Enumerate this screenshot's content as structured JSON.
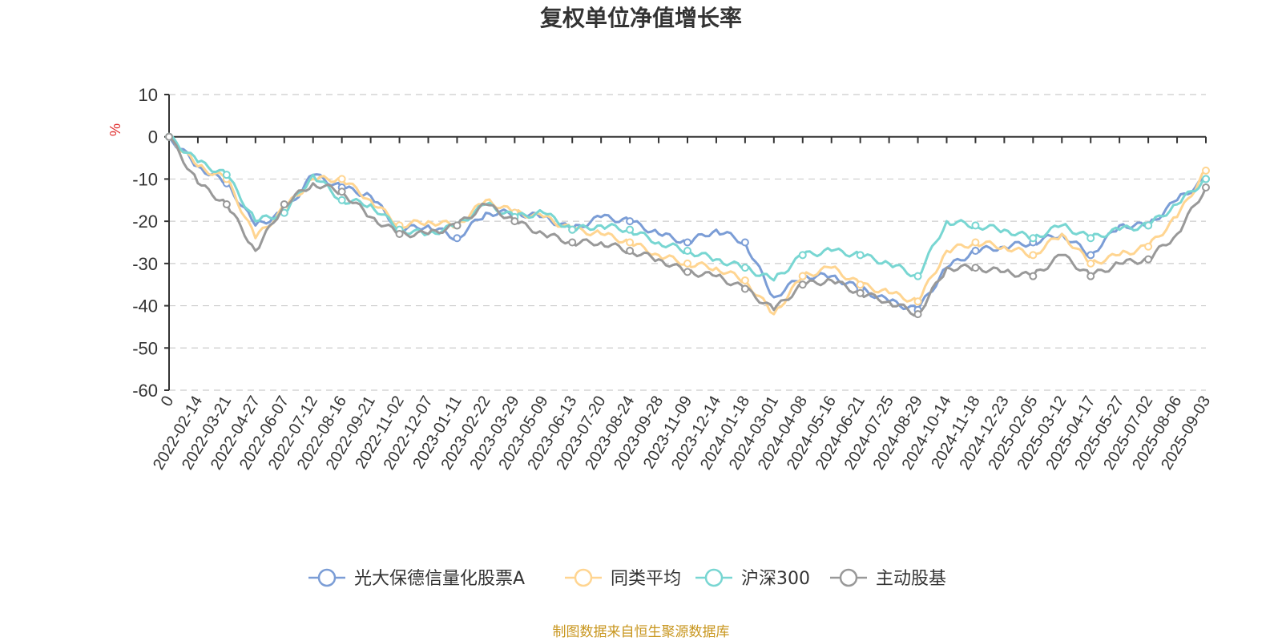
{
  "chart_data": {
    "type": "line",
    "title": "复权单位净值增长率",
    "ylabel": "%",
    "ylim": [
      -60,
      10
    ],
    "yticks": [
      10,
      0,
      -10,
      -20,
      -30,
      -40,
      -50,
      -60
    ],
    "categories": [
      "0",
      "2022-02-14",
      "2022-03-21",
      "2022-04-27",
      "2022-06-07",
      "2022-07-12",
      "2022-08-16",
      "2022-09-21",
      "2022-11-02",
      "2022-12-07",
      "2023-01-11",
      "2023-02-22",
      "2023-03-29",
      "2023-05-09",
      "2023-06-13",
      "2023-07-20",
      "2023-08-24",
      "2023-09-28",
      "2023-11-09",
      "2023-12-14",
      "2024-01-18",
      "2024-03-01",
      "2024-04-08",
      "2024-05-16",
      "2024-06-21",
      "2024-07-25",
      "2024-08-29",
      "2024-10-14",
      "2024-11-18",
      "2024-12-23",
      "2025-02-05",
      "2025-03-12",
      "2025-04-17",
      "2025-05-27",
      "2025-07-02",
      "2025-08-06",
      "2025-09-03"
    ],
    "grid": true,
    "legend_position": "bottom",
    "series": [
      {
        "name": "光大保德信量化股票A",
        "color": "#7b9dd6",
        "values": [
          0,
          -7,
          -11,
          -21,
          -18,
          -9,
          -12,
          -14,
          -22,
          -21,
          -24,
          -18,
          -18,
          -19,
          -22,
          -19,
          -20,
          -23,
          -25,
          -22,
          -25,
          -38,
          -33,
          -33,
          -36,
          -39,
          -41,
          -31,
          -27,
          -26,
          -25,
          -23,
          -28,
          -21,
          -21,
          -15,
          -10
        ]
      },
      {
        "name": "同类平均",
        "color": "#ffd591",
        "values": [
          0,
          -7,
          -10,
          -24,
          -17,
          -10,
          -10,
          -15,
          -21,
          -20,
          -21,
          -15,
          -18,
          -19,
          -22,
          -23,
          -25,
          -28,
          -30,
          -31,
          -34,
          -42,
          -33,
          -31,
          -35,
          -37,
          -39,
          -27,
          -25,
          -26,
          -28,
          -23,
          -30,
          -28,
          -26,
          -19,
          -8
        ]
      },
      {
        "name": "沪深300",
        "color": "#78d6d2",
        "values": [
          0,
          -6,
          -9,
          -20,
          -18,
          -9,
          -15,
          -16,
          -22,
          -23,
          -21,
          -16,
          -19,
          -18,
          -22,
          -21,
          -22,
          -25,
          -27,
          -29,
          -31,
          -34,
          -28,
          -27,
          -28,
          -30,
          -33,
          -20,
          -21,
          -22,
          -24,
          -21,
          -24,
          -22,
          -21,
          -16,
          -10
        ]
      },
      {
        "name": "主动股基",
        "color": "#999999",
        "values": [
          0,
          -11,
          -16,
          -27,
          -16,
          -11,
          -13,
          -19,
          -23,
          -23,
          -21,
          -16,
          -20,
          -23,
          -25,
          -25,
          -27,
          -29,
          -32,
          -33,
          -36,
          -41,
          -35,
          -34,
          -37,
          -39,
          -42,
          -31,
          -31,
          -32,
          -33,
          -28,
          -33,
          -30,
          -29,
          -23,
          -12
        ]
      }
    ]
  },
  "legend_marker_style": "circle-line",
  "source_text": "制图数据来自恒生聚源数据库"
}
